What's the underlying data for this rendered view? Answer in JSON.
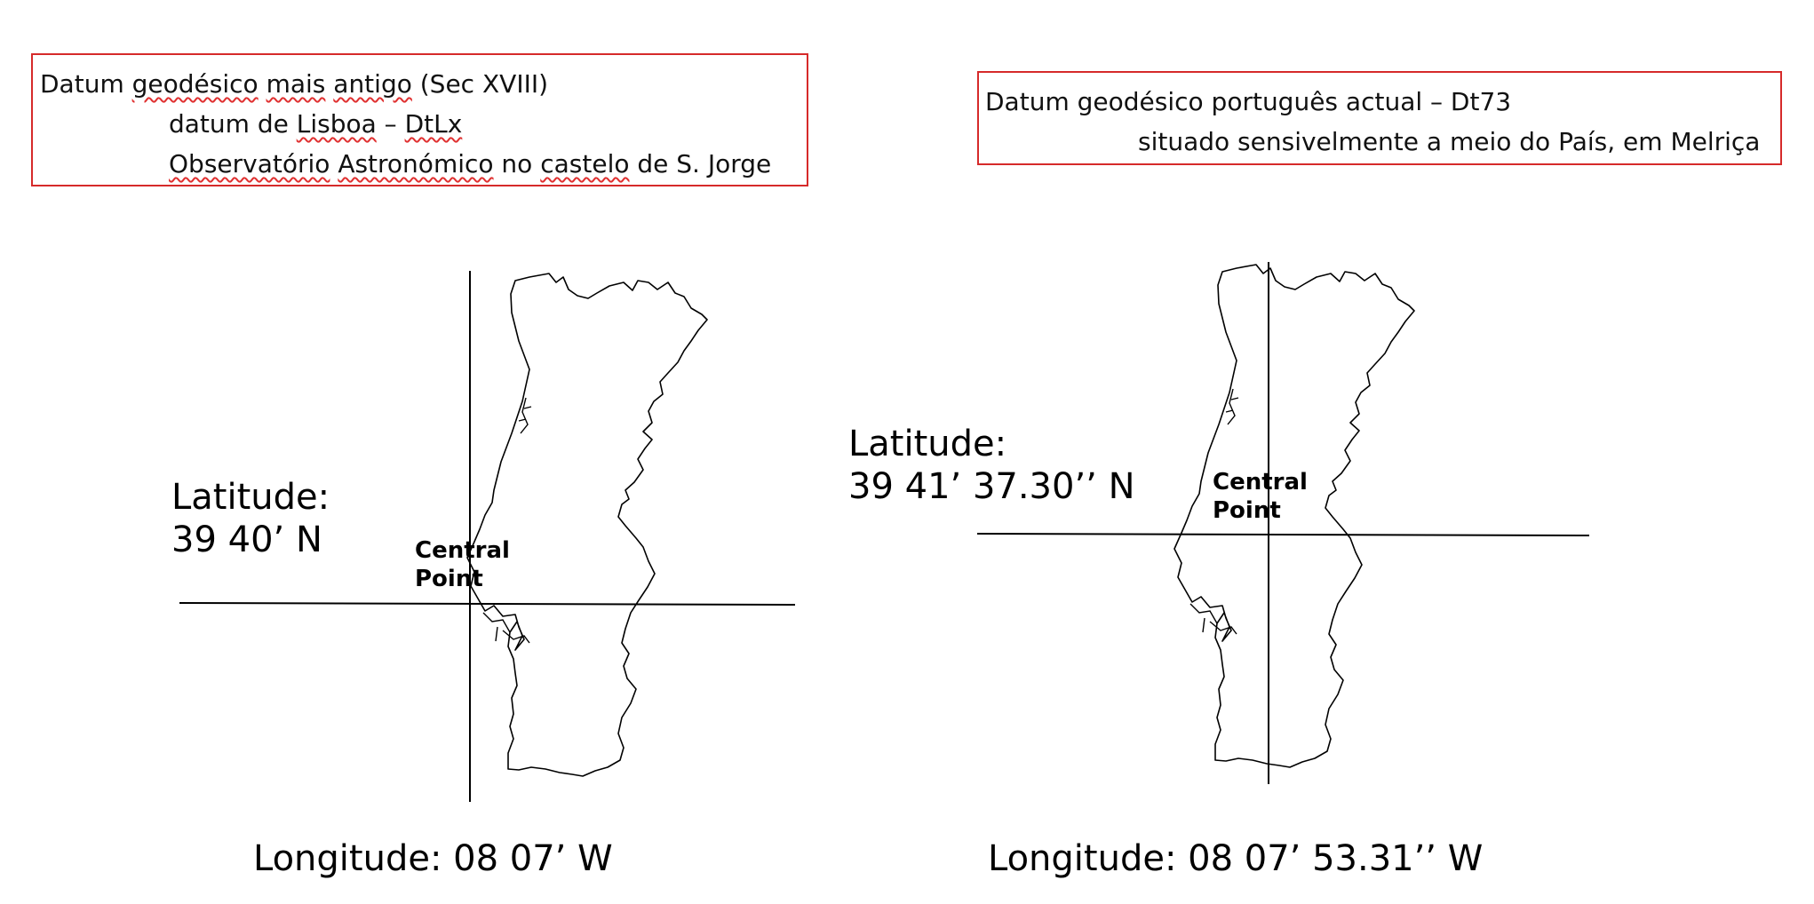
{
  "left_panel": {
    "title_line1": {
      "t1": "Datum ",
      "t2": "geodésico",
      "t3": " ",
      "t4": "mais",
      "t5": " ",
      "t6": "antigo",
      "t7": " (Sec XVIII)"
    },
    "title_line2": {
      "t1": "datum de ",
      "t2": "Lisboa",
      "t3": " – ",
      "t4": "DtLx"
    },
    "title_line3": {
      "t1": "Observatório",
      "t2": " ",
      "t3": "Astronómico",
      "t4": " no ",
      "t5": "castelo",
      "t6": " de S. Jorge"
    },
    "latitude_label": "Latitude:",
    "latitude_value": "39 40’ N",
    "central_point_line1": "Central",
    "central_point_line2": "Point",
    "longitude": "Longitude: 08 07’ W"
  },
  "right_panel": {
    "title_line1": "Datum geodésico português actual – Dt73",
    "title_line2": "situado sensivelmente a meio do País, em Melriça",
    "latitude_label": "Latitude:",
    "latitude_value": "39 41’ 37.30’’ N",
    "central_point_line1": "Central",
    "central_point_line2": "Point",
    "longitude": "Longitude: 08 07’ 53.31’’ W"
  },
  "colors": {
    "box_border": "#d62a2a",
    "spellcheck": "#e03030",
    "lines": "#000000"
  }
}
